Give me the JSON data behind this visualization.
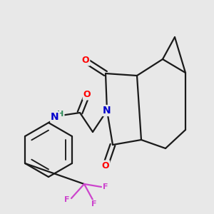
{
  "bg_color": "#e8e8e8",
  "bond_color": "#1a1a1a",
  "bond_width": 1.6,
  "atom_colors": {
    "O": "#ff0000",
    "N": "#0000cc",
    "F": "#cc44cc",
    "H": "#2e8b57",
    "C": "#1a1a1a"
  },
  "figsize": [
    3.0,
    3.0
  ],
  "dpi": 100
}
